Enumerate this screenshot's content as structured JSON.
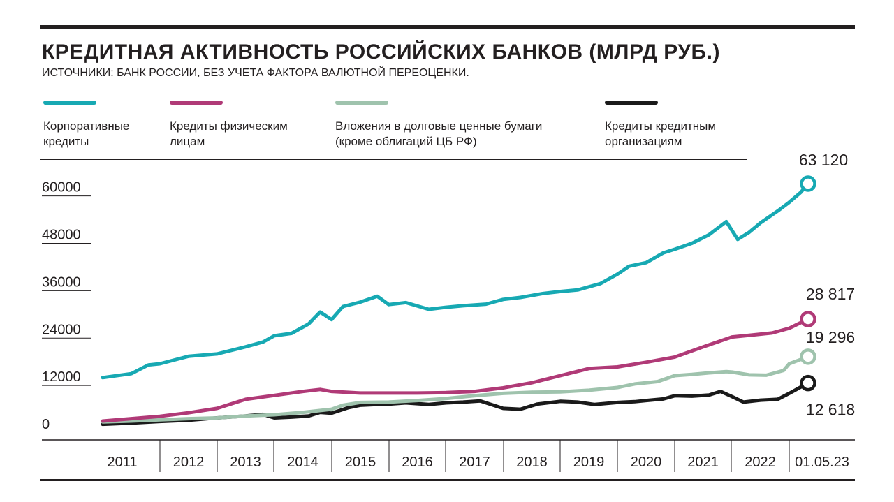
{
  "header": {
    "title": "КРЕДИТНАЯ АКТИВНОСТЬ РОССИЙСКИХ БАНКОВ (МЛРД РУБ.)",
    "subtitle": "ИСТОЧНИКИ: БАНК РОССИИ, БЕЗ УЧЕТА ФАКТОРА ВАЛЮТНОЙ ПЕРЕОЦЕНКИ."
  },
  "legend": [
    {
      "label": "Корпоративные\nкредиты",
      "color": "#17a9b3"
    },
    {
      "label": "Кредиты физическим\nлицам",
      "color": "#b03a77"
    },
    {
      "label": "Вложения в долговые ценные бумаги\n(кроме облигаций ЦБ РФ)",
      "color": "#9fc3ad"
    },
    {
      "label": "Кредиты кредитным\nорганизациям",
      "color": "#1a1a1a"
    }
  ],
  "chart_data": {
    "type": "line",
    "title": "КРЕДИТНАЯ АКТИВНОСТЬ РОССИЙСКИХ БАНКОВ (МЛРД РУБ.)",
    "ylim": [
      0,
      63120
    ],
    "y_ticks": [
      0,
      12000,
      24000,
      36000,
      48000,
      60000
    ],
    "y_tick_labels": [
      "0",
      "12000",
      "24000",
      "36000",
      "48000",
      "60000"
    ],
    "x_tick_labels": [
      "2011",
      "2012",
      "2013",
      "2014",
      "2015",
      "2016",
      "2017",
      "2018",
      "2019",
      "2020",
      "2021",
      "2022",
      "01.05.23"
    ],
    "x_range": [
      2011.0,
      2023.33
    ],
    "series": [
      {
        "name": "Корпоративные кредиты",
        "color": "#17a9b3",
        "end_label": "63 120",
        "x": [
          2011.0,
          2011.5,
          2011.8,
          2012.0,
          2012.5,
          2013.0,
          2013.5,
          2013.8,
          2014.0,
          2014.3,
          2014.6,
          2014.8,
          2015.0,
          2015.2,
          2015.5,
          2015.8,
          2016.0,
          2016.3,
          2016.7,
          2017.0,
          2017.3,
          2017.7,
          2018.0,
          2018.3,
          2018.7,
          2019.0,
          2019.3,
          2019.7,
          2020.0,
          2020.2,
          2020.5,
          2020.8,
          2021.0,
          2021.3,
          2021.6,
          2021.9,
          2022.1,
          2022.3,
          2022.5,
          2022.8,
          2023.0,
          2023.2,
          2023.33
        ],
        "y": [
          14000,
          15000,
          17200,
          17500,
          19400,
          20000,
          21800,
          23000,
          24600,
          25200,
          27600,
          30600,
          28700,
          32000,
          33100,
          34600,
          32500,
          33000,
          31300,
          31800,
          32200,
          32600,
          33800,
          34300,
          35300,
          35800,
          36200,
          37800,
          40200,
          42200,
          43100,
          45600,
          46500,
          48000,
          50200,
          53500,
          49000,
          50800,
          53200,
          56200,
          58400,
          60900,
          63120
        ]
      },
      {
        "name": "Кредиты физическим лицам",
        "color": "#b03a77",
        "end_label": "28 817",
        "x": [
          2011.0,
          2011.5,
          2012.0,
          2012.5,
          2013.0,
          2013.5,
          2014.0,
          2014.5,
          2014.8,
          2015.0,
          2015.5,
          2016.0,
          2016.5,
          2017.0,
          2017.5,
          2018.0,
          2018.5,
          2019.0,
          2019.5,
          2020.0,
          2020.5,
          2021.0,
          2021.5,
          2022.0,
          2022.3,
          2022.7,
          2023.0,
          2023.33
        ],
        "y": [
          3000,
          3600,
          4200,
          5100,
          6200,
          8500,
          9500,
          10500,
          11000,
          10500,
          10100,
          10100,
          10100,
          10200,
          10500,
          11400,
          12700,
          14500,
          16300,
          16700,
          17900,
          19200,
          21800,
          24300,
          24700,
          25300,
          26500,
          28817
        ]
      },
      {
        "name": "Вложения в долговые ценные бумаги (кроме облигаций ЦБ РФ)",
        "color": "#9fc3ad",
        "end_label": "19 296",
        "x": [
          2011.0,
          2011.5,
          2012.0,
          2012.5,
          2013.0,
          2013.5,
          2014.0,
          2014.5,
          2015.0,
          2015.2,
          2015.5,
          2016.0,
          2016.5,
          2017.0,
          2017.5,
          2018.0,
          2018.5,
          2019.0,
          2019.5,
          2020.0,
          2020.3,
          2020.7,
          2021.0,
          2021.3,
          2021.6,
          2021.9,
          2022.0,
          2022.3,
          2022.6,
          2022.9,
          2023.0,
          2023.33
        ],
        "y": [
          2800,
          3000,
          3300,
          3600,
          3800,
          4300,
          4600,
          5200,
          6000,
          7000,
          7700,
          7800,
          8200,
          8700,
          9400,
          10000,
          10300,
          10400,
          10800,
          11500,
          12400,
          13000,
          14500,
          14800,
          15200,
          15500,
          15400,
          14700,
          14600,
          15800,
          17500,
          19296
        ]
      },
      {
        "name": "Кредиты кредитным организациям",
        "color": "#1a1a1a",
        "end_label": "12 618",
        "x": [
          2011.0,
          2011.5,
          2012.0,
          2012.5,
          2013.0,
          2013.5,
          2013.8,
          2014.0,
          2014.3,
          2014.6,
          2014.8,
          2015.0,
          2015.3,
          2015.5,
          2015.8,
          2016.0,
          2016.3,
          2016.7,
          2017.0,
          2017.3,
          2017.6,
          2018.0,
          2018.3,
          2018.6,
          2019.0,
          2019.3,
          2019.6,
          2020.0,
          2020.3,
          2020.5,
          2020.8,
          2021.0,
          2021.3,
          2021.6,
          2021.8,
          2022.0,
          2022.2,
          2022.5,
          2022.8,
          2023.0,
          2023.33
        ],
        "y": [
          2200,
          2500,
          2900,
          3200,
          3800,
          4300,
          4700,
          3800,
          4000,
          4300,
          5200,
          5000,
          6400,
          7000,
          7200,
          7300,
          7600,
          7200,
          7600,
          7800,
          8100,
          6200,
          6000,
          7300,
          8000,
          7800,
          7200,
          7700,
          7900,
          8200,
          8600,
          9400,
          9300,
          9600,
          10500,
          9200,
          7800,
          8300,
          8500,
          10000,
          12618
        ]
      }
    ]
  }
}
